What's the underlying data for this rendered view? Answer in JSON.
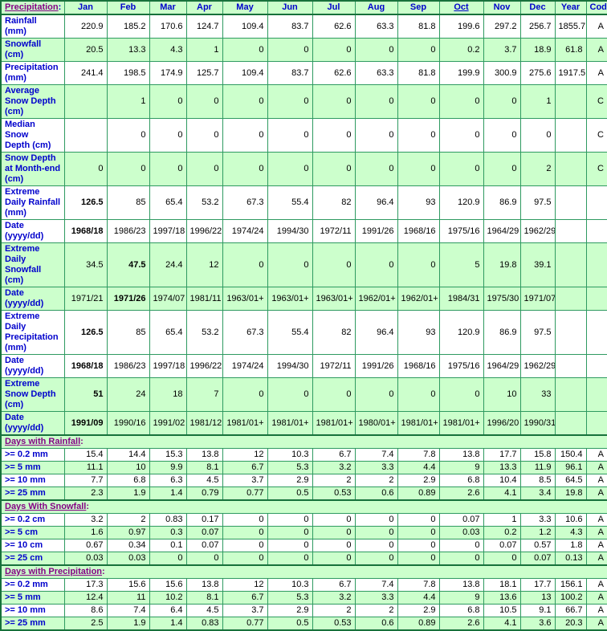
{
  "colors": {
    "cell_green": "#CCFFCC",
    "grid_green": "#2E9A60",
    "outer_border_green": "#17713B",
    "label_blue": "#0000CC",
    "link_purple": "#850085",
    "value_black": "#000000"
  },
  "table": {
    "corner": {
      "link_text": "Precipitation",
      "suffix": ":"
    },
    "columns": [
      "Jan",
      "Feb",
      "Mar",
      "Apr",
      "May",
      "Jun",
      "Jul",
      "Aug",
      "Sep",
      "Oct",
      "Nov",
      "Dec",
      "Year",
      "Code"
    ],
    "underlined_column": "Oct",
    "rows": [
      {
        "kind": "data",
        "bg": "w",
        "label": "Rainfall\n(mm)",
        "values": [
          "220.9",
          "185.2",
          "170.6",
          "124.7",
          "109.4",
          "83.7",
          "62.6",
          "63.3",
          "81.8",
          "199.6",
          "297.2",
          "256.7",
          "1855.7",
          "A"
        ],
        "bold": []
      },
      {
        "kind": "data",
        "bg": "g",
        "label": "Snowfall\n(cm)",
        "values": [
          "20.5",
          "13.3",
          "4.3",
          "1",
          "0",
          "0",
          "0",
          "0",
          "0",
          "0.2",
          "3.7",
          "18.9",
          "61.8",
          "A"
        ],
        "bold": []
      },
      {
        "kind": "data",
        "bg": "w",
        "label": "Precipitation\n(mm)",
        "values": [
          "241.4",
          "198.5",
          "174.9",
          "125.7",
          "109.4",
          "83.7",
          "62.6",
          "63.3",
          "81.8",
          "199.9",
          "300.9",
          "275.6",
          "1917.5",
          "A"
        ],
        "bold": []
      },
      {
        "kind": "data",
        "bg": "g",
        "label": "Average\nSnow Depth\n(cm)",
        "values": [
          "",
          "1",
          "0",
          "0",
          "0",
          "0",
          "0",
          "0",
          "0",
          "0",
          "0",
          "1",
          "",
          "C"
        ],
        "bold": []
      },
      {
        "kind": "data",
        "bg": "w",
        "label": "Median Snow\nDepth (cm)",
        "values": [
          "",
          "0",
          "0",
          "0",
          "0",
          "0",
          "0",
          "0",
          "0",
          "0",
          "0",
          "0",
          "",
          "C"
        ],
        "bold": []
      },
      {
        "kind": "data",
        "bg": "g",
        "label": "Snow Depth\nat Month-end\n(cm)",
        "values": [
          "0",
          "0",
          "0",
          "0",
          "0",
          "0",
          "0",
          "0",
          "0",
          "0",
          "0",
          "2",
          "",
          "C"
        ],
        "bold": []
      },
      {
        "kind": "data",
        "bg": "w",
        "label": "Extreme\nDaily Rainfall\n(mm)",
        "values": [
          "126.5",
          "85",
          "65.4",
          "53.2",
          "67.3",
          "55.4",
          "82",
          "96.4",
          "93",
          "120.9",
          "86.9",
          "97.5",
          "",
          ""
        ],
        "bold": [
          0
        ]
      },
      {
        "kind": "data",
        "bg": "w",
        "label": "Date\n(yyyy/dd)",
        "values": [
          "1968/18",
          "1986/23",
          "1997/18",
          "1996/22",
          "1974/24",
          "1994/30",
          "1972/11",
          "1991/26",
          "1968/16",
          "1975/16",
          "1964/29",
          "1962/29",
          "",
          ""
        ],
        "bold": [
          0
        ]
      },
      {
        "kind": "data",
        "bg": "g",
        "label": "Extreme\nDaily\nSnowfall\n(cm)",
        "values": [
          "34.5",
          "47.5",
          "24.4",
          "12",
          "0",
          "0",
          "0",
          "0",
          "0",
          "5",
          "19.8",
          "39.1",
          "",
          ""
        ],
        "bold": [
          1
        ]
      },
      {
        "kind": "data",
        "bg": "g",
        "label": "Date\n(yyyy/dd)",
        "values": [
          "1971/21",
          "1971/26",
          "1974/07",
          "1981/11",
          "1963/01+",
          "1963/01+",
          "1963/01+",
          "1962/01+",
          "1962/01+",
          "1984/31",
          "1975/30",
          "1971/07",
          "",
          ""
        ],
        "bold": [
          1
        ]
      },
      {
        "kind": "data",
        "bg": "w",
        "label": "Extreme\nDaily\nPrecipitation\n(mm)",
        "values": [
          "126.5",
          "85",
          "65.4",
          "53.2",
          "67.3",
          "55.4",
          "82",
          "96.4",
          "93",
          "120.9",
          "86.9",
          "97.5",
          "",
          ""
        ],
        "bold": [
          0
        ]
      },
      {
        "kind": "data",
        "bg": "w",
        "label": "Date\n(yyyy/dd)",
        "values": [
          "1968/18",
          "1986/23",
          "1997/18",
          "1996/22",
          "1974/24",
          "1994/30",
          "1972/11",
          "1991/26",
          "1968/16",
          "1975/16",
          "1964/29",
          "1962/29",
          "",
          ""
        ],
        "bold": [
          0
        ]
      },
      {
        "kind": "data",
        "bg": "g",
        "label": "Extreme\nSnow Depth\n(cm)",
        "values": [
          "51",
          "24",
          "18",
          "7",
          "0",
          "0",
          "0",
          "0",
          "0",
          "0",
          "10",
          "33",
          "",
          ""
        ],
        "bold": [
          0
        ]
      },
      {
        "kind": "data",
        "bg": "g",
        "label": "Date\n(yyyy/dd)",
        "values": [
          "1991/09",
          "1990/16",
          "1991/02",
          "1981/12",
          "1981/01+",
          "1981/01+",
          "1981/01+",
          "1980/01+",
          "1981/01+",
          "1981/01+",
          "1996/20",
          "1990/31",
          "",
          ""
        ],
        "bold": [
          0
        ]
      },
      {
        "kind": "section",
        "label": "Days with Rainfall",
        "suffix": ":"
      },
      {
        "kind": "data",
        "bg": "w",
        "label": ">= 0.2 mm",
        "values": [
          "15.4",
          "14.4",
          "15.3",
          "13.8",
          "12",
          "10.3",
          "6.7",
          "7.4",
          "7.8",
          "13.8",
          "17.7",
          "15.8",
          "150.4",
          "A"
        ],
        "bold": []
      },
      {
        "kind": "data",
        "bg": "g",
        "label": ">= 5 mm",
        "values": [
          "11.1",
          "10",
          "9.9",
          "8.1",
          "6.7",
          "5.3",
          "3.2",
          "3.3",
          "4.4",
          "9",
          "13.3",
          "11.9",
          "96.1",
          "A"
        ],
        "bold": []
      },
      {
        "kind": "data",
        "bg": "w",
        "label": ">= 10 mm",
        "values": [
          "7.7",
          "6.8",
          "6.3",
          "4.5",
          "3.7",
          "2.9",
          "2",
          "2",
          "2.9",
          "6.8",
          "10.4",
          "8.5",
          "64.5",
          "A"
        ],
        "bold": []
      },
      {
        "kind": "data",
        "bg": "g",
        "label": ">= 25 mm",
        "values": [
          "2.3",
          "1.9",
          "1.4",
          "0.79",
          "0.77",
          "0.5",
          "0.53",
          "0.6",
          "0.89",
          "2.6",
          "4.1",
          "3.4",
          "19.8",
          "A"
        ],
        "bold": []
      },
      {
        "kind": "section",
        "label": "Days With Snowfall",
        "suffix": ":"
      },
      {
        "kind": "data",
        "bg": "w",
        "label": ">= 0.2 cm",
        "values": [
          "3.2",
          "2",
          "0.83",
          "0.17",
          "0",
          "0",
          "0",
          "0",
          "0",
          "0.07",
          "1",
          "3.3",
          "10.6",
          "A"
        ],
        "bold": []
      },
      {
        "kind": "data",
        "bg": "g",
        "label": ">= 5 cm",
        "values": [
          "1.6",
          "0.97",
          "0.3",
          "0.07",
          "0",
          "0",
          "0",
          "0",
          "0",
          "0.03",
          "0.2",
          "1.2",
          "4.3",
          "A"
        ],
        "bold": []
      },
      {
        "kind": "data",
        "bg": "w",
        "label": ">= 10 cm",
        "values": [
          "0.67",
          "0.34",
          "0.1",
          "0.07",
          "0",
          "0",
          "0",
          "0",
          "0",
          "0",
          "0.07",
          "0.57",
          "1.8",
          "A"
        ],
        "bold": []
      },
      {
        "kind": "data",
        "bg": "g",
        "label": ">= 25 cm",
        "values": [
          "0.03",
          "0.03",
          "0",
          "0",
          "0",
          "0",
          "0",
          "0",
          "0",
          "0",
          "0",
          "0.07",
          "0.13",
          "A"
        ],
        "bold": []
      },
      {
        "kind": "section",
        "label": "Days with Precipitation",
        "suffix": ":"
      },
      {
        "kind": "data",
        "bg": "w",
        "label": ">= 0.2 mm",
        "values": [
          "17.3",
          "15.6",
          "15.6",
          "13.8",
          "12",
          "10.3",
          "6.7",
          "7.4",
          "7.8",
          "13.8",
          "18.1",
          "17.7",
          "156.1",
          "A"
        ],
        "bold": []
      },
      {
        "kind": "data",
        "bg": "g",
        "label": ">= 5 mm",
        "values": [
          "12.4",
          "11",
          "10.2",
          "8.1",
          "6.7",
          "5.3",
          "3.2",
          "3.3",
          "4.4",
          "9",
          "13.6",
          "13",
          "100.2",
          "A"
        ],
        "bold": []
      },
      {
        "kind": "data",
        "bg": "w",
        "label": ">= 10 mm",
        "values": [
          "8.6",
          "7.4",
          "6.4",
          "4.5",
          "3.7",
          "2.9",
          "2",
          "2",
          "2.9",
          "6.8",
          "10.5",
          "9.1",
          "66.7",
          "A"
        ],
        "bold": []
      },
      {
        "kind": "data",
        "bg": "g",
        "label": ">= 25 mm",
        "values": [
          "2.5",
          "1.9",
          "1.4",
          "0.83",
          "0.77",
          "0.5",
          "0.53",
          "0.6",
          "0.89",
          "2.6",
          "4.1",
          "3.6",
          "20.3",
          "A"
        ],
        "bold": []
      }
    ]
  }
}
